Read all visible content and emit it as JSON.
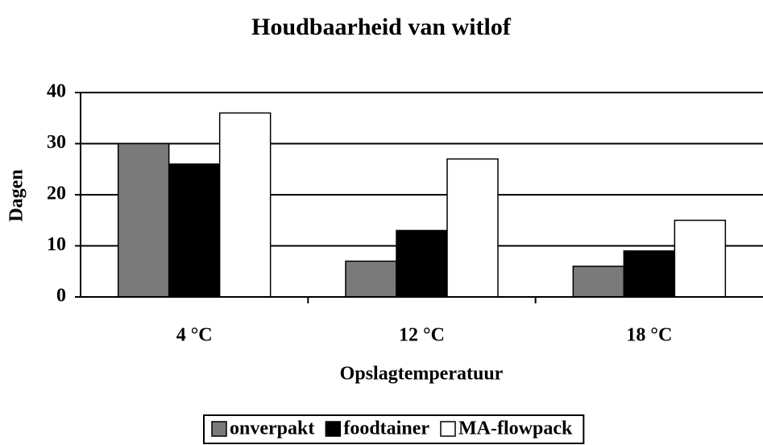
{
  "chart_data": {
    "type": "bar",
    "title": "Houdbaarheid van witlof",
    "categories": [
      "4 °C",
      "12 °C",
      "18 °C"
    ],
    "series": [
      {
        "name": "onverpakt",
        "color": "#7a7a7a",
        "values": [
          30,
          7,
          6
        ]
      },
      {
        "name": "foodtainer",
        "color": "#000000",
        "values": [
          26,
          13,
          9
        ]
      },
      {
        "name": "MA-flowpack",
        "color": "#ffffff",
        "values": [
          36,
          27,
          15
        ]
      }
    ],
    "ylabel": "Dagen",
    "xlabel": "Opslagtemperatuur",
    "ylim": [
      0,
      40
    ],
    "yticks": [
      0,
      10,
      20,
      30,
      40
    ],
    "grid": true,
    "legend": "bottom"
  }
}
